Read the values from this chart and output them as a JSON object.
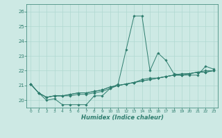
{
  "title": "",
  "xlabel": "Humidex (Indice chaleur)",
  "bg_color": "#cde9e4",
  "grid_color": "#b0d8d0",
  "line_color": "#2e7d6e",
  "xlim": [
    -0.5,
    23.5
  ],
  "ylim": [
    19.5,
    26.5
  ],
  "yticks": [
    20,
    21,
    22,
    23,
    24,
    25,
    26
  ],
  "xticks": [
    0,
    1,
    2,
    3,
    4,
    5,
    6,
    7,
    8,
    9,
    10,
    11,
    12,
    13,
    14,
    15,
    16,
    17,
    18,
    19,
    20,
    21,
    22,
    23
  ],
  "series": [
    [
      21.1,
      20.5,
      20.0,
      20.1,
      19.7,
      19.7,
      19.7,
      19.7,
      20.3,
      20.3,
      20.8,
      21.1,
      23.4,
      25.7,
      25.7,
      22.0,
      23.2,
      22.7,
      21.8,
      21.7,
      21.7,
      21.7,
      22.3,
      22.1
    ],
    [
      21.1,
      20.5,
      20.2,
      20.3,
      20.3,
      20.3,
      20.4,
      20.4,
      20.5,
      20.6,
      20.8,
      21.0,
      21.1,
      21.2,
      21.3,
      21.4,
      21.5,
      21.6,
      21.7,
      21.7,
      21.8,
      21.9,
      21.9,
      22.0
    ],
    [
      21.1,
      20.5,
      20.2,
      20.3,
      20.3,
      20.4,
      20.5,
      20.5,
      20.6,
      20.7,
      20.9,
      21.0,
      21.1,
      21.2,
      21.4,
      21.5,
      21.5,
      21.6,
      21.7,
      21.8,
      21.8,
      21.9,
      22.0,
      22.0
    ],
    [
      21.1,
      20.5,
      20.2,
      20.3,
      20.3,
      20.4,
      20.5,
      20.5,
      20.6,
      20.7,
      20.9,
      21.0,
      21.1,
      21.2,
      21.3,
      21.4,
      21.5,
      21.6,
      21.7,
      21.7,
      21.8,
      21.9,
      21.9,
      22.0
    ]
  ]
}
